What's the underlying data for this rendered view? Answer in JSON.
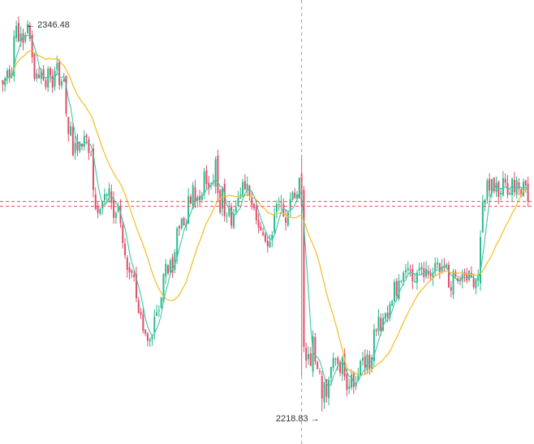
{
  "chart_data": {
    "type": "candlestick",
    "high_label": {
      "text": "2346.48",
      "value": 2346.48,
      "arrow": "←"
    },
    "low_label": {
      "text": "2218.83",
      "value": 2218.83,
      "arrow": "→"
    },
    "ylim": [
      2213,
      2351
    ],
    "crosshair": {
      "vertical_at_candle": 132,
      "horizontal_values": [
        2287.4,
        2285.8
      ]
    },
    "colors": {
      "up": "#2bb98e",
      "down": "#e34d67",
      "fast_ma": "#3ec6a8",
      "slow_ma": "#f2c230",
      "crosshair_vertical": "#d08a8a",
      "crosshair_horizontal": "#e05060"
    },
    "ma_periods": {
      "fast": 5,
      "slow": 20
    },
    "closes": [
      2325.5,
      2327.6,
      2330.1,
      2327.9,
      2329.1,
      2341.4,
      2344.6,
      2339.6,
      2342.1,
      2339.1,
      2341.7,
      2345.3,
      2340.4,
      2334.4,
      2327.4,
      2329.2,
      2327.6,
      2329.9,
      2327.1,
      2324.7,
      2330.7,
      2328.5,
      2324.5,
      2330.0,
      2332.5,
      2325.4,
      2326.6,
      2326.6,
      2316.0,
      2309.4,
      2311.9,
      2302.4,
      2306.5,
      2304.1,
      2306.9,
      2305.7,
      2308.7,
      2308.3,
      2303.2,
      2302.3,
      2291.1,
      2285.0,
      2283.7,
      2284.9,
      2287.5,
      2289.8,
      2289.8,
      2291.7,
      2287.0,
      2282.1,
      2283.6,
      2286.1,
      2280.2,
      2273.9,
      2269.8,
      2265.1,
      2264.2,
      2264.1,
      2262.7,
      2255.8,
      2251.1,
      2250.5,
      2245.2,
      2244.2,
      2242.0,
      2242.4,
      2243.7,
      2249.8,
      2251.2,
      2251.8,
      2256.1,
      2263.7,
      2267.0,
      2263.9,
      2268.2,
      2264.1,
      2270.8,
      2278.6,
      2278.6,
      2281.8,
      2279.6,
      2280.2,
      2289.1,
      2286.6,
      2292.7,
      2287.2,
      2288.4,
      2287.8,
      2289.6,
      2297.1,
      2293.1,
      2291.7,
      2292.6,
      2293.8,
      2301.2,
      2290.1,
      2283.8,
      2291.8,
      2282.6,
      2282.7,
      2285.2,
      2279.5,
      2283.4,
      2285.6,
      2288.5,
      2289.6,
      2293.7,
      2291.4,
      2293.1,
      2289.3,
      2286.2,
      2285.2,
      2281.3,
      2278.8,
      2278.0,
      2276.5,
      2274.4,
      2272.8,
      2274.3,
      2276.6,
      2283.3,
      2286.5,
      2286.5,
      2287.2,
      2282.6,
      2280.4,
      2283.9,
      2288.1,
      2290.3,
      2288.5,
      2289.6,
      2295.1,
      2285.9,
      2240.0,
      2235.5,
      2237.6,
      2233.9,
      2243.4,
      2235.1,
      2232.7,
      2231.7,
      2223.1,
      2228.5,
      2223.7,
      2229.2,
      2233.4,
      2236.4,
      2236.0,
      2234.4,
      2231.5,
      2236.5,
      2230.3,
      2225.9,
      2227.1,
      2230.8,
      2226.8,
      2228.3,
      2231.0,
      2235.3,
      2236.3,
      2232.9,
      2237.5,
      2232.8,
      2236.5,
      2245.7,
      2245.0,
      2249.8,
      2245.0,
      2249.4,
      2250.9,
      2249.6,
      2253.9,
      2254.9,
      2261.1,
      2256.6,
      2261.5,
      2261.5,
      2264.2,
      2265.0,
      2265.7,
      2264.7,
      2261.3,
      2261.4,
      2264.2,
      2265.6,
      2266.1,
      2262.7,
      2265.4,
      2263.5,
      2263.1,
      2264.0,
      2267.3,
      2267.4,
      2264.3,
      2266.1,
      2265.7,
      2266.9,
      2259.3,
      2258.3,
      2264.6,
      2262.9,
      2261.6,
      2261.4,
      2263.6,
      2263.3,
      2261.6,
      2264.8,
      2262.6,
      2259.4,
      2261.8,
      2263.6,
      2275.8,
      2287.1,
      2288.1,
      2294.2,
      2291.0,
      2294.6,
      2290.7,
      2293.5,
      2288.9,
      2290.2,
      2295.0,
      2293.5,
      2289.6,
      2290.2,
      2294.8,
      2290.4,
      2294.3,
      2291.5,
      2288.9,
      2293.8,
      2292.6,
      2287.4
    ]
  }
}
